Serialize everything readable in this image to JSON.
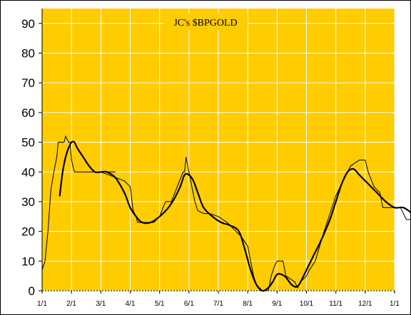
{
  "chart_data": {
    "type": "line",
    "title": "JC's $BPGOLD",
    "xlabel": "",
    "ylabel": "",
    "ylim": [
      0,
      95
    ],
    "y_ticks": [
      0,
      10,
      20,
      30,
      40,
      50,
      60,
      70,
      80,
      90
    ],
    "x_ticks": [
      "1/1",
      "2/1",
      "3/1",
      "4/1",
      "5/1",
      "6/1",
      "7/1",
      "8/1",
      "9/1",
      "10/1",
      "11/1",
      "12/1",
      "1/1"
    ],
    "grid": true,
    "legend": "none",
    "colors": {
      "plot_background": "#FFCC00",
      "title_background": "#FFCC00",
      "gridline": "#FFFFFF",
      "raw_line": "#000000",
      "smoothed_line": "#000000"
    },
    "series": [
      {
        "style": "thin-step",
        "x": [
          0,
          0.1,
          0.2,
          0.3,
          0.4,
          0.5,
          0.55,
          0.6,
          0.65,
          0.7,
          0.75,
          0.8,
          0.9,
          0.95,
          1.0,
          1.1,
          1.2,
          1.3,
          1.5,
          1.65,
          1.75,
          1.85,
          2.0,
          2.5,
          2.0,
          2.8,
          3.0,
          3.05,
          3.1,
          3.2,
          3.25,
          3.3,
          3.4,
          3.5,
          3.6,
          3.8,
          4.0,
          4.2,
          4.4,
          4.8,
          4.85,
          4.9,
          5.0,
          5.1,
          5.2,
          5.3,
          5.5,
          5.7,
          6.0,
          6.3,
          6.6,
          6.8,
          7.0,
          7.1,
          7.2,
          7.3,
          7.5,
          7.7,
          7.8,
          7.9,
          8.0,
          8.2,
          8.3,
          8.6,
          8.7,
          8.8,
          9.0,
          9.1,
          9.3,
          9.6,
          9.8,
          10.0,
          10.3,
          10.5,
          10.8,
          11.0,
          11.1,
          11.3,
          11.5,
          11.6,
          11.8,
          12.0,
          12.2,
          12.4,
          12.6,
          12.8,
          13.0
        ],
        "values": [
          7,
          10,
          20,
          34,
          40,
          45,
          50,
          50,
          50,
          50,
          50,
          52,
          50,
          50,
          44,
          40,
          40,
          40,
          40,
          40,
          40,
          40,
          40,
          40,
          40,
          37,
          35,
          31,
          27,
          25,
          23,
          23,
          23,
          23,
          23,
          23,
          25,
          30,
          30,
          40,
          40,
          45,
          40,
          35,
          30,
          27,
          26,
          26,
          25,
          23,
          20,
          18,
          15,
          10,
          5,
          2,
          0,
          0,
          5,
          8,
          10,
          10,
          5,
          3,
          1,
          3,
          5,
          7,
          10,
          20,
          26,
          32,
          38,
          42,
          44,
          44,
          40,
          35,
          33,
          28,
          28,
          28,
          28,
          24,
          24,
          24,
          31
        ]
      },
      {
        "style": "thick-smoothed",
        "x": [
          0.6,
          0.7,
          0.8,
          0.9,
          1.0,
          1.1,
          1.2,
          1.4,
          1.6,
          1.8,
          2.0,
          2.2,
          2.5,
          2.8,
          3.0,
          3.2,
          3.4,
          3.7,
          4.0,
          4.3,
          4.5,
          4.7,
          4.85,
          5.0,
          5.15,
          5.3,
          5.5,
          5.8,
          6.1,
          6.4,
          6.7,
          6.9,
          7.1,
          7.3,
          7.5,
          7.7,
          7.85,
          8.0,
          8.15,
          8.3,
          8.5,
          8.7,
          8.9,
          9.2,
          9.5,
          9.8,
          10.0,
          10.2,
          10.4,
          10.6,
          10.8,
          11.1,
          11.4,
          11.7,
          12.0,
          12.3,
          12.6,
          12.85,
          13.0
        ],
        "values": [
          32,
          40,
          45,
          48,
          50,
          50,
          48,
          45,
          42,
          40,
          40,
          40,
          38,
          33,
          28,
          25,
          23,
          23,
          25,
          28,
          31,
          35,
          39,
          39,
          37,
          33,
          28,
          25,
          23,
          22,
          20,
          14,
          7,
          2,
          0,
          1,
          3,
          5.5,
          5.5,
          4.5,
          2,
          1.5,
          5,
          11,
          17,
          24,
          30,
          36,
          40,
          41,
          39,
          36,
          33,
          30,
          28,
          28,
          26,
          24,
          26
        ]
      }
    ]
  }
}
